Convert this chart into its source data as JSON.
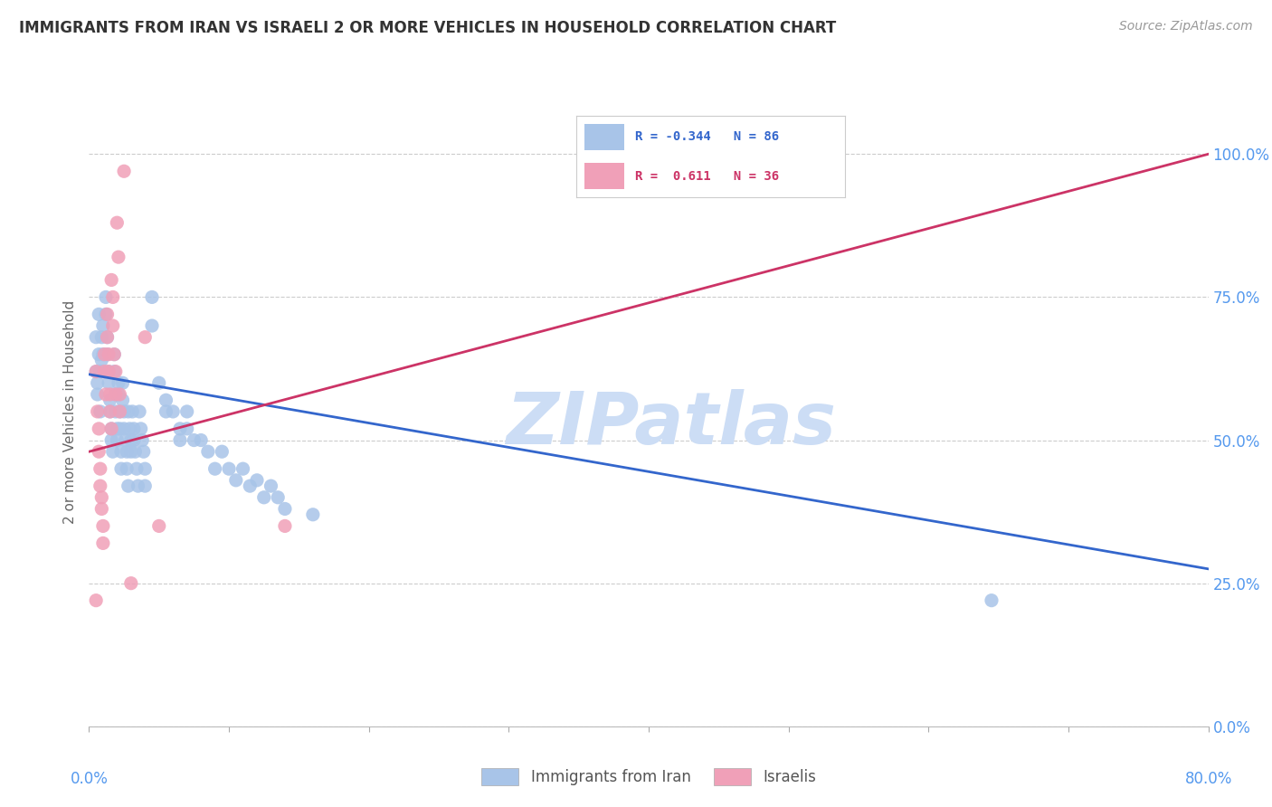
{
  "title": "IMMIGRANTS FROM IRAN VS ISRAELI 2 OR MORE VEHICLES IN HOUSEHOLD CORRELATION CHART",
  "source": "Source: ZipAtlas.com",
  "ylabel": "2 or more Vehicles in Household",
  "xlim": [
    0.0,
    0.8
  ],
  "ylim": [
    0.0,
    1.1
  ],
  "blue_R": -0.344,
  "blue_N": 86,
  "pink_R": 0.611,
  "pink_N": 36,
  "blue_color": "#a8c4e8",
  "pink_color": "#f0a0b8",
  "blue_line_color": "#3366cc",
  "pink_line_color": "#cc3366",
  "watermark": "ZIPatlas",
  "watermark_color": "#ccddf5",
  "legend_label_blue": "Immigrants from Iran",
  "legend_label_pink": "Israelis",
  "blue_scatter": [
    [
      0.005,
      0.62
    ],
    [
      0.006,
      0.58
    ],
    [
      0.007,
      0.72
    ],
    [
      0.007,
      0.65
    ],
    [
      0.005,
      0.68
    ],
    [
      0.006,
      0.6
    ],
    [
      0.008,
      0.55
    ],
    [
      0.008,
      0.62
    ],
    [
      0.009,
      0.68
    ],
    [
      0.009,
      0.64
    ],
    [
      0.01,
      0.7
    ],
    [
      0.01,
      0.65
    ],
    [
      0.01,
      0.62
    ],
    [
      0.012,
      0.75
    ],
    [
      0.012,
      0.72
    ],
    [
      0.013,
      0.68
    ],
    [
      0.013,
      0.65
    ],
    [
      0.014,
      0.62
    ],
    [
      0.014,
      0.6
    ],
    [
      0.015,
      0.57
    ],
    [
      0.015,
      0.55
    ],
    [
      0.016,
      0.52
    ],
    [
      0.016,
      0.5
    ],
    [
      0.017,
      0.48
    ],
    [
      0.018,
      0.65
    ],
    [
      0.018,
      0.62
    ],
    [
      0.019,
      0.58
    ],
    [
      0.019,
      0.55
    ],
    [
      0.02,
      0.52
    ],
    [
      0.02,
      0.5
    ],
    [
      0.021,
      0.6
    ],
    [
      0.021,
      0.58
    ],
    [
      0.022,
      0.55
    ],
    [
      0.022,
      0.52
    ],
    [
      0.023,
      0.48
    ],
    [
      0.023,
      0.45
    ],
    [
      0.024,
      0.6
    ],
    [
      0.024,
      0.57
    ],
    [
      0.025,
      0.55
    ],
    [
      0.025,
      0.52
    ],
    [
      0.026,
      0.5
    ],
    [
      0.027,
      0.48
    ],
    [
      0.027,
      0.45
    ],
    [
      0.028,
      0.42
    ],
    [
      0.028,
      0.55
    ],
    [
      0.029,
      0.52
    ],
    [
      0.03,
      0.5
    ],
    [
      0.03,
      0.48
    ],
    [
      0.031,
      0.55
    ],
    [
      0.032,
      0.52
    ],
    [
      0.032,
      0.5
    ],
    [
      0.033,
      0.48
    ],
    [
      0.034,
      0.45
    ],
    [
      0.035,
      0.42
    ],
    [
      0.036,
      0.55
    ],
    [
      0.037,
      0.52
    ],
    [
      0.038,
      0.5
    ],
    [
      0.039,
      0.48
    ],
    [
      0.04,
      0.45
    ],
    [
      0.04,
      0.42
    ],
    [
      0.045,
      0.75
    ],
    [
      0.045,
      0.7
    ],
    [
      0.05,
      0.6
    ],
    [
      0.055,
      0.57
    ],
    [
      0.055,
      0.55
    ],
    [
      0.06,
      0.55
    ],
    [
      0.065,
      0.52
    ],
    [
      0.065,
      0.5
    ],
    [
      0.07,
      0.55
    ],
    [
      0.07,
      0.52
    ],
    [
      0.075,
      0.5
    ],
    [
      0.08,
      0.5
    ],
    [
      0.085,
      0.48
    ],
    [
      0.09,
      0.45
    ],
    [
      0.095,
      0.48
    ],
    [
      0.1,
      0.45
    ],
    [
      0.105,
      0.43
    ],
    [
      0.11,
      0.45
    ],
    [
      0.115,
      0.42
    ],
    [
      0.12,
      0.43
    ],
    [
      0.125,
      0.4
    ],
    [
      0.13,
      0.42
    ],
    [
      0.135,
      0.4
    ],
    [
      0.14,
      0.38
    ],
    [
      0.16,
      0.37
    ],
    [
      0.645,
      0.22
    ]
  ],
  "pink_scatter": [
    [
      0.005,
      0.62
    ],
    [
      0.006,
      0.55
    ],
    [
      0.007,
      0.52
    ],
    [
      0.007,
      0.48
    ],
    [
      0.008,
      0.45
    ],
    [
      0.008,
      0.42
    ],
    [
      0.009,
      0.4
    ],
    [
      0.009,
      0.38
    ],
    [
      0.01,
      0.35
    ],
    [
      0.01,
      0.32
    ],
    [
      0.011,
      0.65
    ],
    [
      0.011,
      0.62
    ],
    [
      0.012,
      0.58
    ],
    [
      0.013,
      0.72
    ],
    [
      0.013,
      0.68
    ],
    [
      0.014,
      0.65
    ],
    [
      0.014,
      0.62
    ],
    [
      0.015,
      0.58
    ],
    [
      0.015,
      0.55
    ],
    [
      0.016,
      0.52
    ],
    [
      0.016,
      0.78
    ],
    [
      0.017,
      0.75
    ],
    [
      0.017,
      0.7
    ],
    [
      0.018,
      0.65
    ],
    [
      0.019,
      0.62
    ],
    [
      0.019,
      0.58
    ],
    [
      0.02,
      0.88
    ],
    [
      0.021,
      0.82
    ],
    [
      0.022,
      0.58
    ],
    [
      0.022,
      0.55
    ],
    [
      0.025,
      0.97
    ],
    [
      0.03,
      0.25
    ],
    [
      0.04,
      0.68
    ],
    [
      0.05,
      0.35
    ],
    [
      0.005,
      0.22
    ],
    [
      0.14,
      0.35
    ]
  ],
  "blue_trend_x": [
    0.0,
    0.8
  ],
  "blue_trend_y": [
    0.615,
    0.275
  ],
  "pink_trend_x": [
    0.0,
    0.8
  ],
  "pink_trend_y": [
    0.48,
    1.0
  ]
}
